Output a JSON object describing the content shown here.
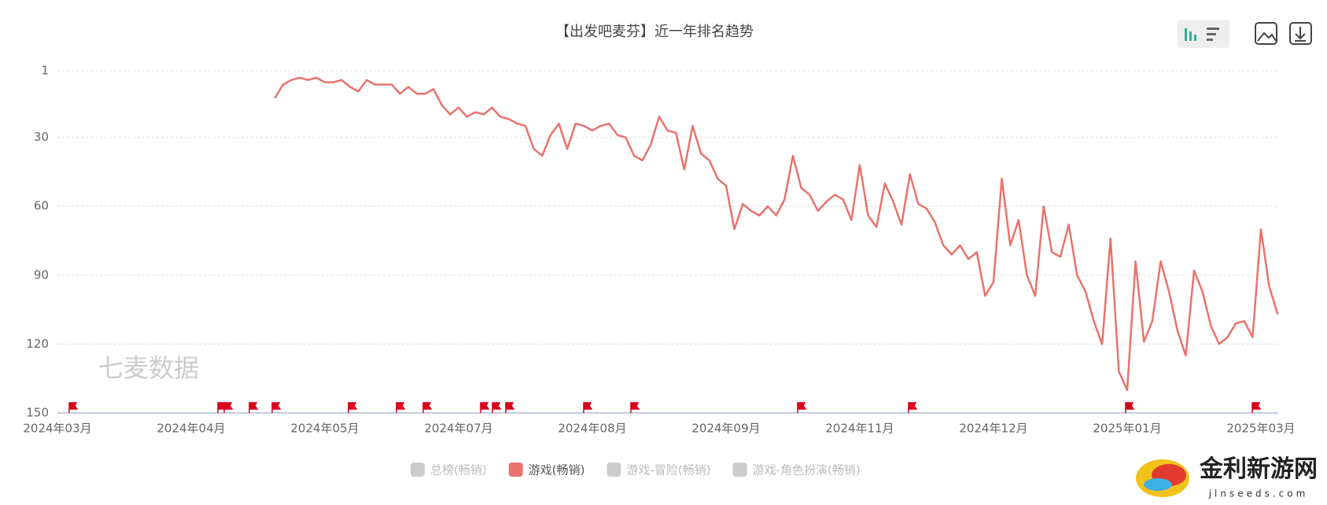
{
  "chart_data": {
    "type": "line",
    "title": "【出发吧麦芬】近一年排名趋势",
    "watermark": "七麦数据",
    "site_name": "金利新游网",
    "site_url": "jlnseeds.com",
    "y_inverted": true,
    "grid": true,
    "ylim": [
      1,
      150
    ],
    "yticks": [
      1,
      30,
      60,
      90,
      120,
      150
    ],
    "categories": [
      "2024年03月",
      null,
      null,
      null,
      null,
      null,
      null,
      null,
      null,
      null,
      null,
      null,
      null,
      null,
      null,
      null,
      "2024年04月",
      null,
      null,
      null,
      null,
      null,
      null,
      null,
      null,
      null,
      null,
      null,
      null,
      null,
      null,
      null,
      "2024年05月",
      null,
      null,
      null,
      null,
      null,
      null,
      null,
      null,
      null,
      null,
      null,
      null,
      null,
      null,
      null,
      "2024年07月",
      null,
      null,
      null,
      null,
      null,
      null,
      null,
      null,
      null,
      null,
      null,
      null,
      null,
      null,
      null,
      "2024年08月",
      null,
      null,
      null,
      null,
      null,
      null,
      null,
      null,
      null,
      null,
      null,
      null,
      null,
      null,
      null,
      "2024年09月",
      null,
      null,
      null,
      null,
      null,
      null,
      null,
      null,
      null,
      null,
      null,
      null,
      null,
      null,
      null,
      "2024年11月",
      null,
      null,
      null,
      null,
      null,
      null,
      null,
      null,
      null,
      null,
      null,
      null,
      null,
      null,
      null,
      "2024年12月",
      null,
      null,
      null,
      null,
      null,
      null,
      null,
      null,
      null,
      null,
      null,
      null,
      null,
      null,
      null,
      "2025年01月",
      null,
      null,
      null,
      null,
      null,
      null,
      null,
      null,
      null,
      null,
      null,
      null,
      null,
      null,
      null,
      "2025年03月",
      null,
      null
    ],
    "series": [
      {
        "name": "游戏(畅销)",
        "color": "#e8736c",
        "values": [
          null,
          null,
          null,
          null,
          null,
          null,
          null,
          null,
          null,
          null,
          null,
          null,
          null,
          null,
          null,
          null,
          null,
          null,
          null,
          null,
          null,
          null,
          null,
          null,
          null,
          null,
          13,
          7,
          5,
          4,
          5,
          4,
          6,
          6,
          5,
          8,
          10,
          5,
          7,
          7,
          7,
          11,
          8,
          11,
          11,
          9,
          16,
          20,
          17,
          21,
          19,
          20,
          17,
          21,
          22,
          24,
          25,
          35,
          38,
          29,
          24,
          35,
          24,
          25,
          27,
          25,
          24,
          29,
          30,
          38,
          40,
          33,
          21,
          27,
          28,
          44,
          25,
          37,
          40,
          48,
          51,
          70,
          59,
          62,
          64,
          60,
          64,
          57,
          38,
          52,
          55,
          62,
          58,
          55,
          57,
          66,
          42,
          64,
          69,
          50,
          58,
          68,
          46,
          59,
          61,
          67,
          77,
          81,
          77,
          83,
          80,
          99,
          93,
          48,
          77,
          66,
          90,
          99,
          60,
          80,
          82,
          68,
          90,
          97,
          110,
          120,
          74,
          132,
          140,
          84,
          119,
          110,
          84,
          97,
          114,
          125,
          88,
          97,
          112,
          120,
          117,
          111,
          110,
          117,
          70,
          95,
          107
        ]
      }
    ],
    "legend": [
      {
        "name": "总榜(畅销)",
        "color": "#cccccc"
      },
      {
        "name": "游戏(畅销)",
        "color": "#e8736c"
      },
      {
        "name": "游戏-冒险(畅销)",
        "color": "#cccccc"
      },
      {
        "name": "游戏-角色扮演(畅销)",
        "color": "#cccccc"
      }
    ]
  }
}
